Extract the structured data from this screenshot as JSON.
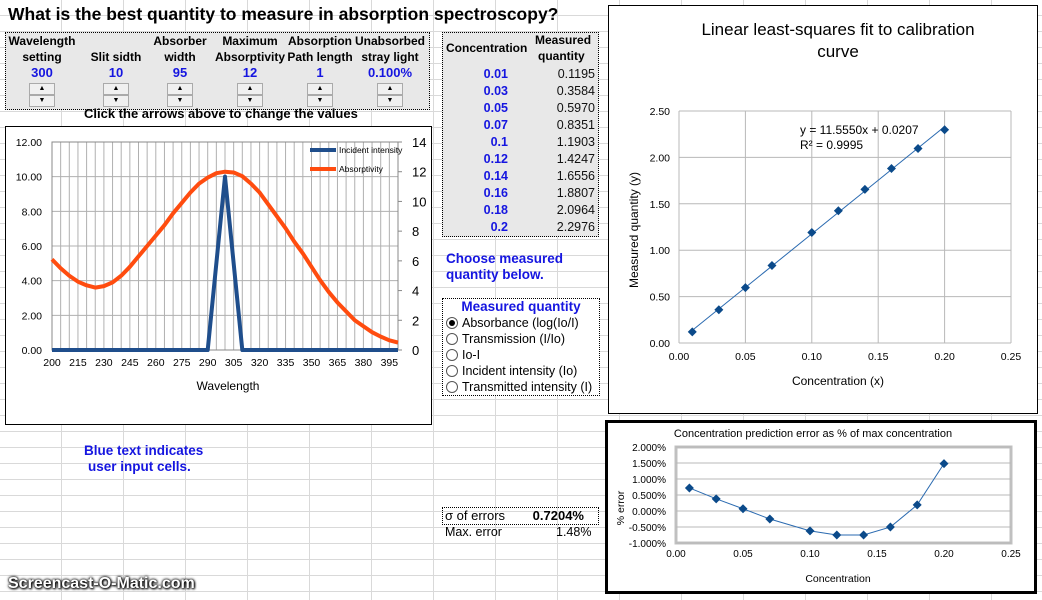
{
  "title": "What is the best quantity to measure in absorption spectroscopy?",
  "controls": [
    {
      "label1": "Wavelength",
      "label2": "setting",
      "value": "300"
    },
    {
      "label1": "",
      "label2": "Slit sidth",
      "value": "10"
    },
    {
      "label1": "Absorber",
      "label2": "width",
      "value": "95"
    },
    {
      "label1": "Maximum",
      "label2": "Absorptivity",
      "value": "12"
    },
    {
      "label1": "Absorption",
      "label2": "Path length",
      "value": "1"
    },
    {
      "label1": "Unabsorbed",
      "label2": "stray light",
      "value": "0.100%"
    }
  ],
  "spinner_up": "▲",
  "spinner_down": "▼",
  "instructions": "Click the arrows above to change the values",
  "table": {
    "headers": [
      "Concentration",
      "Measured",
      "quantity"
    ],
    "rows": [
      {
        "c": "0.01",
        "m": "0.1195"
      },
      {
        "c": "0.03",
        "m": "0.3584"
      },
      {
        "c": "0.05",
        "m": "0.5970"
      },
      {
        "c": "0.07",
        "m": "0.8351"
      },
      {
        "c": "0.1",
        "m": "1.1903"
      },
      {
        "c": "0.12",
        "m": "1.4247"
      },
      {
        "c": "0.14",
        "m": "1.6556"
      },
      {
        "c": "0.16",
        "m": "1.8807"
      },
      {
        "c": "0.18",
        "m": "2.0964"
      },
      {
        "c": "0.2",
        "m": "2.2976"
      }
    ]
  },
  "choose_text1": "Choose measured",
  "choose_text2": "quantity below.",
  "measured_quantity": {
    "title": "Measured quantity",
    "options": [
      "Absorbance (log(Io/I)",
      "Transmission (I/Io)",
      "Io-I",
      "Incident intensity (Io)",
      "Transmitted intensity (I)"
    ],
    "selected": 0
  },
  "note1": "Blue text indicates",
  "note2": "user input cells.",
  "stats": {
    "sigma_label": "σ of errors",
    "sigma_value": "0.7204%",
    "max_label": "Max. error",
    "max_value": "1.48%"
  },
  "watermark": "Screencast-O-Matic.com",
  "chart_data": [
    {
      "type": "line",
      "xlabel": "Wavelength",
      "x_ticks": [
        "200",
        "215",
        "230",
        "245",
        "260",
        "275",
        "290",
        "305",
        "320",
        "335",
        "350",
        "365",
        "380",
        "395"
      ],
      "xlim": [
        200,
        400
      ],
      "y_left_ticks": [
        "0.00",
        "2.00",
        "4.00",
        "6.00",
        "8.00",
        "10.00",
        "12.00"
      ],
      "ylim_left": [
        0,
        12
      ],
      "y_right_ticks": [
        "0",
        "2",
        "4",
        "6",
        "8",
        "10",
        "12",
        "14"
      ],
      "ylim_right": [
        0,
        14
      ],
      "grid": true,
      "legend": "top-right",
      "series": [
        {
          "name": "Incident intensity",
          "axis": "left",
          "color": "#1f4e8c",
          "x": [
            200,
            290,
            300,
            310,
            400
          ],
          "y": [
            0,
            0,
            10,
            0,
            0
          ]
        },
        {
          "name": "Absorptivity",
          "axis": "right",
          "color": "#ff4c0f",
          "x": [
            200,
            205,
            210,
            215,
            220,
            225,
            230,
            235,
            240,
            245,
            250,
            255,
            260,
            265,
            270,
            275,
            280,
            285,
            290,
            295,
            300,
            305,
            310,
            315,
            320,
            325,
            330,
            335,
            340,
            345,
            350,
            355,
            360,
            365,
            370,
            375,
            380,
            385,
            390,
            395,
            400
          ],
          "y": [
            6.1,
            5.5,
            5.0,
            4.6,
            4.35,
            4.2,
            4.3,
            4.55,
            5.0,
            5.6,
            6.3,
            7.0,
            7.7,
            8.4,
            9.2,
            9.9,
            10.6,
            11.2,
            11.6,
            11.9,
            12.0,
            11.95,
            11.7,
            11.2,
            10.6,
            9.8,
            9.0,
            8.2,
            7.3,
            6.5,
            5.6,
            4.7,
            3.9,
            3.2,
            2.6,
            2.0,
            1.6,
            1.2,
            0.9,
            0.65,
            0.5
          ]
        }
      ]
    },
    {
      "type": "scatter",
      "title": "Linear least-squares fit to calibration curve",
      "xlabel": "Concentration (x)",
      "ylabel": "Measured quantity (y)",
      "xlim": [
        0,
        0.25
      ],
      "ylim": [
        0,
        2.5
      ],
      "x_ticks": [
        "0.00",
        "0.05",
        "0.10",
        "0.15",
        "0.20",
        "0.25"
      ],
      "y_ticks": [
        "0.00",
        "0.50",
        "1.00",
        "1.50",
        "2.00",
        "2.50"
      ],
      "grid": true,
      "trendline": {
        "slope": 11.555,
        "intercept": 0.0207,
        "equation": "y = 11.5550x + 0.0207",
        "r2": "R² = 0.9995"
      },
      "color": "#0b4a8a",
      "x": [
        0.01,
        0.03,
        0.05,
        0.07,
        0.1,
        0.12,
        0.14,
        0.16,
        0.18,
        0.2
      ],
      "y": [
        0.1195,
        0.3584,
        0.597,
        0.8351,
        1.1903,
        1.4247,
        1.6556,
        1.8807,
        2.0964,
        2.2976
      ]
    },
    {
      "type": "line",
      "title": "Concentration prediction error as % of max concentration",
      "xlabel": "Concentration",
      "ylabel": "% error",
      "xlim": [
        0,
        0.25
      ],
      "ylim": [
        -1.0,
        2.0
      ],
      "x_ticks": [
        "0.00",
        "0.05",
        "0.10",
        "0.15",
        "0.20",
        "0.25"
      ],
      "y_ticks": [
        "-1.000%",
        "-0.500%",
        "0.000%",
        "0.500%",
        "1.000%",
        "1.500%",
        "2.000%"
      ],
      "grid": true,
      "color": "#0b4a8a",
      "x": [
        0.01,
        0.03,
        0.05,
        0.07,
        0.1,
        0.12,
        0.14,
        0.16,
        0.18,
        0.2
      ],
      "y": [
        0.72,
        0.38,
        0.07,
        -0.25,
        -0.62,
        -0.75,
        -0.75,
        -0.5,
        0.19,
        1.48
      ]
    }
  ]
}
